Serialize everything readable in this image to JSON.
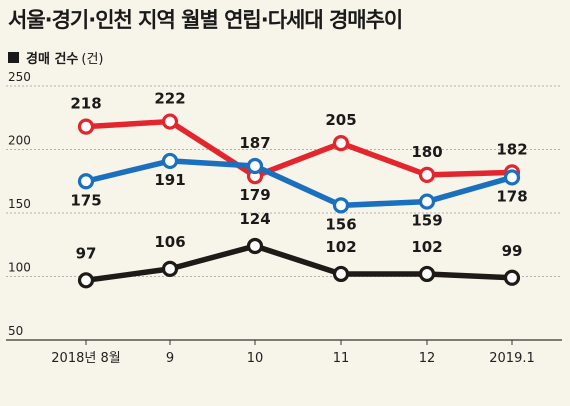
{
  "chart_data": {
    "type": "line",
    "title": "서울·경기·인천 지역 월별 연립·다세대 경매추이",
    "unit_label": "경매 건수",
    "unit_suffix": "(건)",
    "categories": [
      "2018년 8월",
      "9",
      "10",
      "11",
      "12",
      "2019.1"
    ],
    "ylim": [
      50,
      250
    ],
    "yticks": [
      50,
      100,
      150,
      200,
      250
    ],
    "grid": true,
    "series": [
      {
        "color": "#e3262e",
        "values": [
          218,
          222,
          179,
          205,
          180,
          182
        ]
      },
      {
        "color": "#1b6fbf",
        "values": [
          175,
          191,
          187,
          156,
          159,
          178
        ]
      },
      {
        "color": "#1f1a17",
        "values": [
          97,
          106,
          124,
          102,
          102,
          99
        ]
      }
    ]
  }
}
